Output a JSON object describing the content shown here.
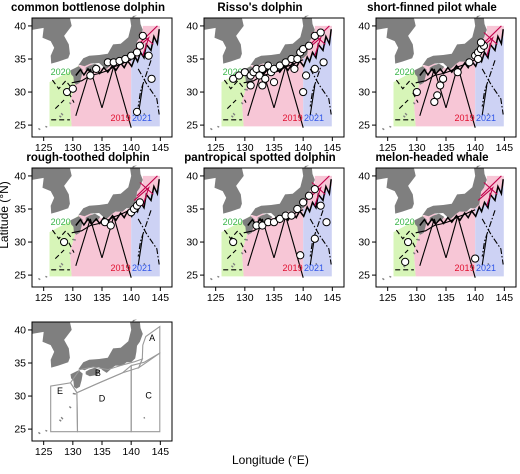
{
  "figure": {
    "y_axis_label": "Latitude (°N)",
    "x_axis_label": "Longitude (°E)",
    "x_ticks": [
      "125",
      "130",
      "135",
      "140",
      "145"
    ],
    "y_ticks": [
      "25",
      "30",
      "35",
      "40"
    ],
    "year_labels": {
      "y2020": "2020",
      "y2019": "2019",
      "y2021": "2021"
    },
    "colors": {
      "land": "#7f7f7f",
      "survey_2020": "#d7f5b8",
      "survey_2019": "#f7c6d6",
      "survey_2021": "#cdd2f4",
      "label_2020": "#39b54a",
      "label_2019": "#e0102f",
      "label_2021": "#2f55e8",
      "region_outline": "#9a9a9a"
    }
  },
  "panels": [
    {
      "title": "common bottlenose dolphin",
      "sightings": [
        [
          129,
          30
        ],
        [
          130,
          30.5
        ],
        [
          133,
          32.5
        ],
        [
          134,
          33.5
        ],
        [
          136,
          34.5
        ],
        [
          137,
          34.5
        ],
        [
          138,
          34.7
        ],
        [
          139,
          35
        ],
        [
          140,
          35.5
        ],
        [
          141,
          36
        ],
        [
          141.5,
          37
        ],
        [
          142,
          38.5
        ],
        [
          143,
          35.5
        ],
        [
          143.5,
          32
        ],
        [
          141,
          27
        ]
      ]
    },
    {
      "title": "Risso's dolphin",
      "sightings": [
        [
          128,
          32
        ],
        [
          129,
          32.5
        ],
        [
          130,
          33
        ],
        [
          131,
          32.5
        ],
        [
          131.5,
          33
        ],
        [
          132,
          33.5
        ],
        [
          132.5,
          32.5
        ],
        [
          133,
          33.5
        ],
        [
          133.5,
          32
        ],
        [
          134,
          34
        ],
        [
          134.5,
          33
        ],
        [
          135,
          33.5
        ],
        [
          136,
          34
        ],
        [
          137,
          34.5
        ],
        [
          138,
          35
        ],
        [
          138.5,
          33.5
        ],
        [
          139,
          35
        ],
        [
          139.5,
          36
        ],
        [
          140,
          36.5
        ],
        [
          141,
          37
        ],
        [
          142,
          38.5
        ],
        [
          143,
          39
        ],
        [
          131,
          31
        ],
        [
          133,
          31
        ],
        [
          135,
          31.5
        ],
        [
          140.5,
          32.5
        ],
        [
          142,
          33.5
        ],
        [
          143.5,
          34.5
        ],
        [
          140,
          30
        ]
      ]
    },
    {
      "title": "short-finned pilot whale",
      "sightings": [
        [
          130,
          30
        ],
        [
          134.5,
          32
        ],
        [
          134,
          31
        ],
        [
          133.5,
          29.5
        ],
        [
          133,
          28.5
        ],
        [
          137,
          33
        ],
        [
          139,
          34.5
        ],
        [
          140,
          35.5
        ],
        [
          140.5,
          36
        ],
        [
          141,
          36.5
        ],
        [
          141.5,
          37
        ],
        [
          141,
          37.5
        ],
        [
          140.5,
          35
        ]
      ]
    },
    {
      "title": "rough-toothed dolphin",
      "sightings": [
        [
          128.5,
          30
        ],
        [
          135.5,
          33
        ],
        [
          136.5,
          32.5
        ],
        [
          140,
          34.5
        ],
        [
          140.5,
          35
        ],
        [
          141,
          35.5
        ],
        [
          141.5,
          36
        ]
      ]
    },
    {
      "title": "pantropical spotted dolphin",
      "sightings": [
        [
          128,
          30
        ],
        [
          132,
          32.5
        ],
        [
          133,
          32.5
        ],
        [
          134,
          33
        ],
        [
          135,
          33
        ],
        [
          136,
          33.5
        ],
        [
          137,
          34
        ],
        [
          138,
          34
        ],
        [
          139,
          35
        ],
        [
          140,
          36
        ],
        [
          141,
          37
        ],
        [
          142,
          38
        ],
        [
          143,
          35.5
        ],
        [
          144,
          33
        ],
        [
          142,
          30.5
        ],
        [
          139.5,
          28
        ]
      ]
    },
    {
      "title": "melon-headed whale",
      "sightings": [
        [
          128.5,
          30
        ],
        [
          128,
          27
        ],
        [
          140,
          27.5
        ]
      ]
    }
  ],
  "region_map": {
    "region_labels": [
      "A",
      "B",
      "C",
      "D",
      "E"
    ]
  }
}
